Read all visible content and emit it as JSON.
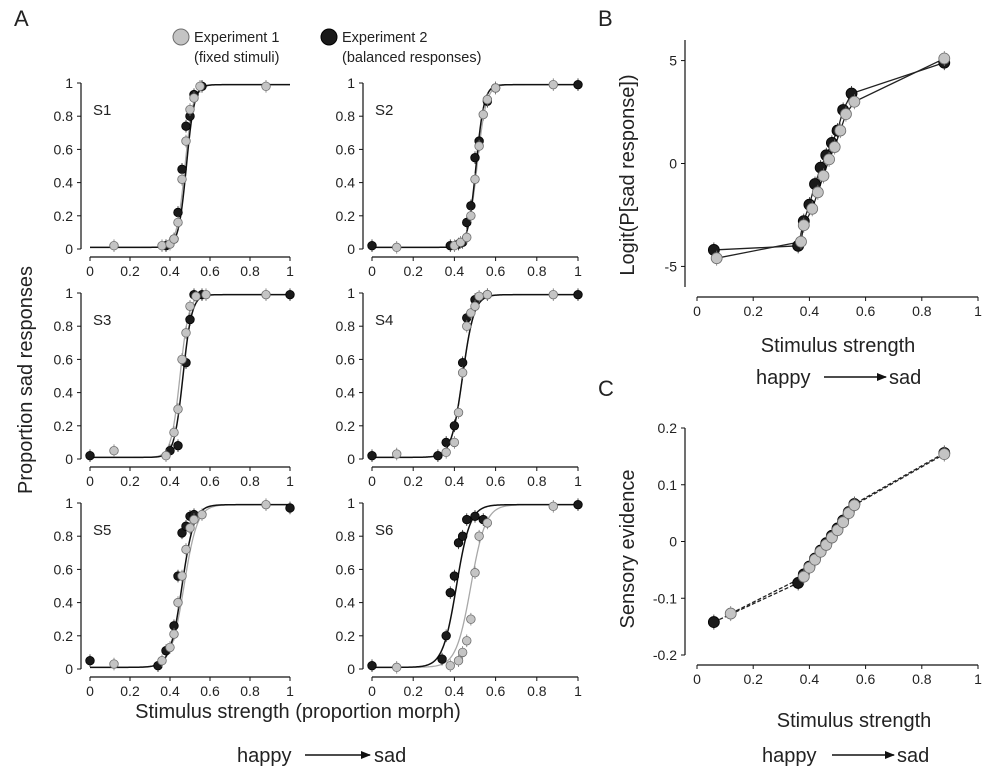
{
  "panels": {
    "a": "A",
    "b": "B",
    "c": "C"
  },
  "legend": {
    "exp1_line1": "Experiment 1",
    "exp1_line2": "(fixed stimuli)",
    "exp2_line1": "Experiment 2",
    "exp2_line2": "(balanced responses)"
  },
  "colors": {
    "exp1": "#c4c4c4",
    "exp2": "#1a1a1a",
    "exp1_edge": "#6e6e6e",
    "axis": "#111111"
  },
  "labels": {
    "a_ylabel": "Proportion sad responses",
    "a_xlabel": "Stimulus strength (proportion morph)",
    "b_ylabel": "Logit(P[sad response])",
    "b_xlabel": "Stimulus strength",
    "c_ylabel": "Sensory evidence",
    "c_xlabel": "Stimulus strength",
    "happy": "happy",
    "sad": "sad"
  },
  "chart_data": [
    {
      "type": "scatter",
      "id": "S1",
      "subject_label": "S1",
      "xlim": [
        0,
        1
      ],
      "ylim": [
        0,
        1
      ],
      "xticks": [
        "0",
        "0.2",
        "0.4",
        "0.6",
        "0.8",
        "1"
      ],
      "yticks": [
        "0",
        "0.2",
        "0.4",
        "0.6",
        "0.8",
        "1"
      ],
      "curves": [
        {
          "series": "exp1",
          "mu": 0.475,
          "k": 48
        },
        {
          "series": "exp2",
          "mu": 0.482,
          "k": 50
        }
      ],
      "series": [
        {
          "name": "Experiment 1",
          "x": [
            0.12,
            0.36,
            0.4,
            0.42,
            0.44,
            0.46,
            0.48,
            0.5,
            0.52,
            0.55,
            0.88
          ],
          "y": [
            0.02,
            0.02,
            0.03,
            0.06,
            0.16,
            0.42,
            0.65,
            0.84,
            0.91,
            0.98,
            0.98
          ]
        },
        {
          "name": "Experiment 2",
          "x": [
            0.38,
            0.42,
            0.44,
            0.46,
            0.48,
            0.5,
            0.52,
            0.56
          ],
          "y": [
            0.02,
            0.06,
            0.22,
            0.48,
            0.74,
            0.8,
            0.93,
            0.98
          ]
        }
      ]
    },
    {
      "type": "scatter",
      "id": "S2",
      "subject_label": "S2",
      "xlim": [
        0,
        1
      ],
      "ylim": [
        0,
        1
      ],
      "xticks": [
        "0",
        "0.2",
        "0.4",
        "0.6",
        "0.8",
        "1"
      ],
      "yticks": [
        "0",
        "0.2",
        "0.4",
        "0.6",
        "0.8",
        "1"
      ],
      "curves": [
        {
          "series": "exp1",
          "mu": 0.51,
          "k": 45
        },
        {
          "series": "exp2",
          "mu": 0.505,
          "k": 50
        }
      ],
      "series": [
        {
          "name": "Experiment 1",
          "x": [
            0.12,
            0.4,
            0.43,
            0.46,
            0.48,
            0.5,
            0.52,
            0.54,
            0.56,
            0.6,
            0.88
          ],
          "y": [
            0.01,
            0.02,
            0.04,
            0.07,
            0.2,
            0.42,
            0.62,
            0.81,
            0.9,
            0.97,
            0.99
          ]
        },
        {
          "name": "Experiment 2",
          "x": [
            0.0,
            0.38,
            0.42,
            0.44,
            0.46,
            0.48,
            0.5,
            0.52,
            0.56,
            0.6,
            1.0
          ],
          "y": [
            0.02,
            0.02,
            0.03,
            0.04,
            0.16,
            0.26,
            0.55,
            0.65,
            0.89,
            0.97,
            0.99
          ]
        }
      ]
    },
    {
      "type": "scatter",
      "id": "S3",
      "subject_label": "S3",
      "xlim": [
        0,
        1
      ],
      "ylim": [
        0,
        1
      ],
      "xticks": [
        "0",
        "0.2",
        "0.4",
        "0.6",
        "0.8",
        "1"
      ],
      "yticks": [
        "0",
        "0.2",
        "0.4",
        "0.6",
        "0.8",
        "1"
      ],
      "curves": [
        {
          "series": "exp1",
          "mu": 0.45,
          "k": 45
        },
        {
          "series": "exp2",
          "mu": 0.465,
          "k": 45
        }
      ],
      "series": [
        {
          "name": "Experiment 1",
          "x": [
            0.12,
            0.38,
            0.42,
            0.44,
            0.46,
            0.48,
            0.5,
            0.53,
            0.58,
            0.88
          ],
          "y": [
            0.05,
            0.02,
            0.16,
            0.3,
            0.6,
            0.76,
            0.92,
            0.98,
            0.99,
            0.99
          ]
        },
        {
          "name": "Experiment 2",
          "x": [
            0.0,
            0.4,
            0.44,
            0.48,
            0.5,
            0.52,
            0.56,
            1.0
          ],
          "y": [
            0.02,
            0.05,
            0.08,
            0.58,
            0.84,
            0.99,
            0.99,
            0.99
          ]
        }
      ]
    },
    {
      "type": "scatter",
      "id": "S4",
      "subject_label": "S4",
      "xlim": [
        0,
        1
      ],
      "ylim": [
        0,
        1
      ],
      "xticks": [
        "0",
        "0.2",
        "0.4",
        "0.6",
        "0.8",
        "1"
      ],
      "yticks": [
        "0",
        "0.2",
        "0.4",
        "0.6",
        "0.8",
        "1"
      ],
      "curves": [
        {
          "series": "exp1",
          "mu": 0.44,
          "k": 36
        },
        {
          "series": "exp2",
          "mu": 0.44,
          "k": 36
        }
      ],
      "series": [
        {
          "name": "Experiment 1",
          "x": [
            0.12,
            0.36,
            0.4,
            0.42,
            0.44,
            0.46,
            0.48,
            0.5,
            0.52,
            0.56,
            0.88
          ],
          "y": [
            0.03,
            0.04,
            0.1,
            0.28,
            0.52,
            0.8,
            0.88,
            0.92,
            0.98,
            0.99,
            0.99
          ]
        },
        {
          "name": "Experiment 2",
          "x": [
            0.0,
            0.32,
            0.36,
            0.4,
            0.44,
            0.46,
            0.5,
            0.56,
            1.0
          ],
          "y": [
            0.02,
            0.02,
            0.1,
            0.2,
            0.58,
            0.85,
            0.96,
            0.99,
            0.99
          ]
        }
      ]
    },
    {
      "type": "scatter",
      "id": "S5",
      "subject_label": "S5",
      "xlim": [
        0,
        1
      ],
      "ylim": [
        0,
        1
      ],
      "xticks": [
        "0",
        "0.2",
        "0.4",
        "0.6",
        "0.8",
        "1"
      ],
      "yticks": [
        "0",
        "0.2",
        "0.4",
        "0.6",
        "0.8",
        "1"
      ],
      "curves": [
        {
          "series": "exp1",
          "mu": 0.47,
          "k": 30
        },
        {
          "series": "exp2",
          "mu": 0.46,
          "k": 33
        }
      ],
      "series": [
        {
          "name": "Experiment 1",
          "x": [
            0.12,
            0.36,
            0.4,
            0.42,
            0.44,
            0.46,
            0.48,
            0.5,
            0.52,
            0.56,
            0.88
          ],
          "y": [
            0.03,
            0.05,
            0.13,
            0.21,
            0.4,
            0.56,
            0.72,
            0.85,
            0.9,
            0.93,
            0.99
          ]
        },
        {
          "name": "Experiment 2",
          "x": [
            0.0,
            0.34,
            0.38,
            0.42,
            0.44,
            0.46,
            0.48,
            0.5,
            0.52,
            1.0
          ],
          "y": [
            0.05,
            0.02,
            0.11,
            0.26,
            0.56,
            0.82,
            0.86,
            0.92,
            0.93,
            0.97
          ]
        }
      ]
    },
    {
      "type": "scatter",
      "id": "S6",
      "subject_label": "S6",
      "xlim": [
        0,
        1
      ],
      "ylim": [
        0,
        1
      ],
      "xticks": [
        "0",
        "0.2",
        "0.4",
        "0.6",
        "0.8",
        "1"
      ],
      "yticks": [
        "0",
        "0.2",
        "0.4",
        "0.6",
        "0.8",
        "1"
      ],
      "curves": [
        {
          "series": "exp1",
          "mu": 0.48,
          "k": 28
        },
        {
          "series": "exp2",
          "mu": 0.41,
          "k": 30
        }
      ],
      "series": [
        {
          "name": "Experiment 1",
          "x": [
            0.12,
            0.38,
            0.42,
            0.44,
            0.46,
            0.48,
            0.5,
            0.52,
            0.56,
            0.88
          ],
          "y": [
            0.01,
            0.02,
            0.05,
            0.1,
            0.17,
            0.3,
            0.58,
            0.8,
            0.88,
            0.98
          ]
        },
        {
          "name": "Experiment 2",
          "x": [
            0.0,
            0.34,
            0.36,
            0.38,
            0.4,
            0.42,
            0.44,
            0.46,
            0.5,
            0.54,
            1.0
          ],
          "y": [
            0.02,
            0.06,
            0.2,
            0.46,
            0.56,
            0.76,
            0.8,
            0.9,
            0.92,
            0.9,
            0.99
          ]
        }
      ]
    },
    {
      "type": "line",
      "id": "B",
      "xlim": [
        0,
        1
      ],
      "ylim": [
        -6,
        6
      ],
      "ylabel": "Logit(P[sad response])",
      "xlabel": "Stimulus strength",
      "xticks": [
        "0",
        "0.2",
        "0.4",
        "0.6",
        "0.8",
        "1"
      ],
      "yticks": [
        "-5",
        "0",
        "5"
      ],
      "series": [
        {
          "name": "Experiment 1",
          "x": [
            0.07,
            0.37,
            0.38,
            0.41,
            0.43,
            0.45,
            0.47,
            0.49,
            0.51,
            0.53,
            0.56,
            0.88
          ],
          "y": [
            -4.6,
            -3.8,
            -3.0,
            -2.2,
            -1.4,
            -0.6,
            0.2,
            0.8,
            1.6,
            2.4,
            3.0,
            5.1
          ]
        },
        {
          "name": "Experiment 2",
          "x": [
            0.06,
            0.36,
            0.38,
            0.4,
            0.42,
            0.44,
            0.46,
            0.48,
            0.5,
            0.52,
            0.55,
            0.88
          ],
          "y": [
            -4.2,
            -4.0,
            -2.8,
            -2.0,
            -1.0,
            -0.2,
            0.4,
            1.0,
            1.6,
            2.6,
            3.4,
            4.9
          ]
        }
      ]
    },
    {
      "type": "line",
      "id": "C",
      "xlim": [
        0,
        1
      ],
      "ylim": [
        -0.2,
        0.2
      ],
      "ylabel": "Sensory evidence",
      "xlabel": "Stimulus strength",
      "xticks": [
        "0",
        "0.2",
        "0.4",
        "0.6",
        "0.8",
        "1"
      ],
      "yticks": [
        "-0.2",
        "-0.1",
        "0",
        "0.1",
        "0.2"
      ],
      "series": [
        {
          "name": "Experiment 1",
          "x": [
            0.12,
            0.38,
            0.4,
            0.42,
            0.44,
            0.46,
            0.48,
            0.5,
            0.52,
            0.54,
            0.56,
            0.88
          ],
          "y": [
            -0.127,
            -0.062,
            -0.046,
            -0.032,
            -0.018,
            -0.006,
            0.007,
            0.02,
            0.034,
            0.05,
            0.064,
            0.154
          ]
        },
        {
          "name": "Experiment 2",
          "x": [
            0.06,
            0.36,
            0.38,
            0.4,
            0.42,
            0.44,
            0.46,
            0.48,
            0.5,
            0.52,
            0.54,
            0.56,
            0.88
          ],
          "y": [
            -0.142,
            -0.073,
            -0.058,
            -0.044,
            -0.03,
            -0.016,
            -0.003,
            0.01,
            0.023,
            0.037,
            0.052,
            0.066,
            0.156
          ]
        }
      ]
    }
  ]
}
